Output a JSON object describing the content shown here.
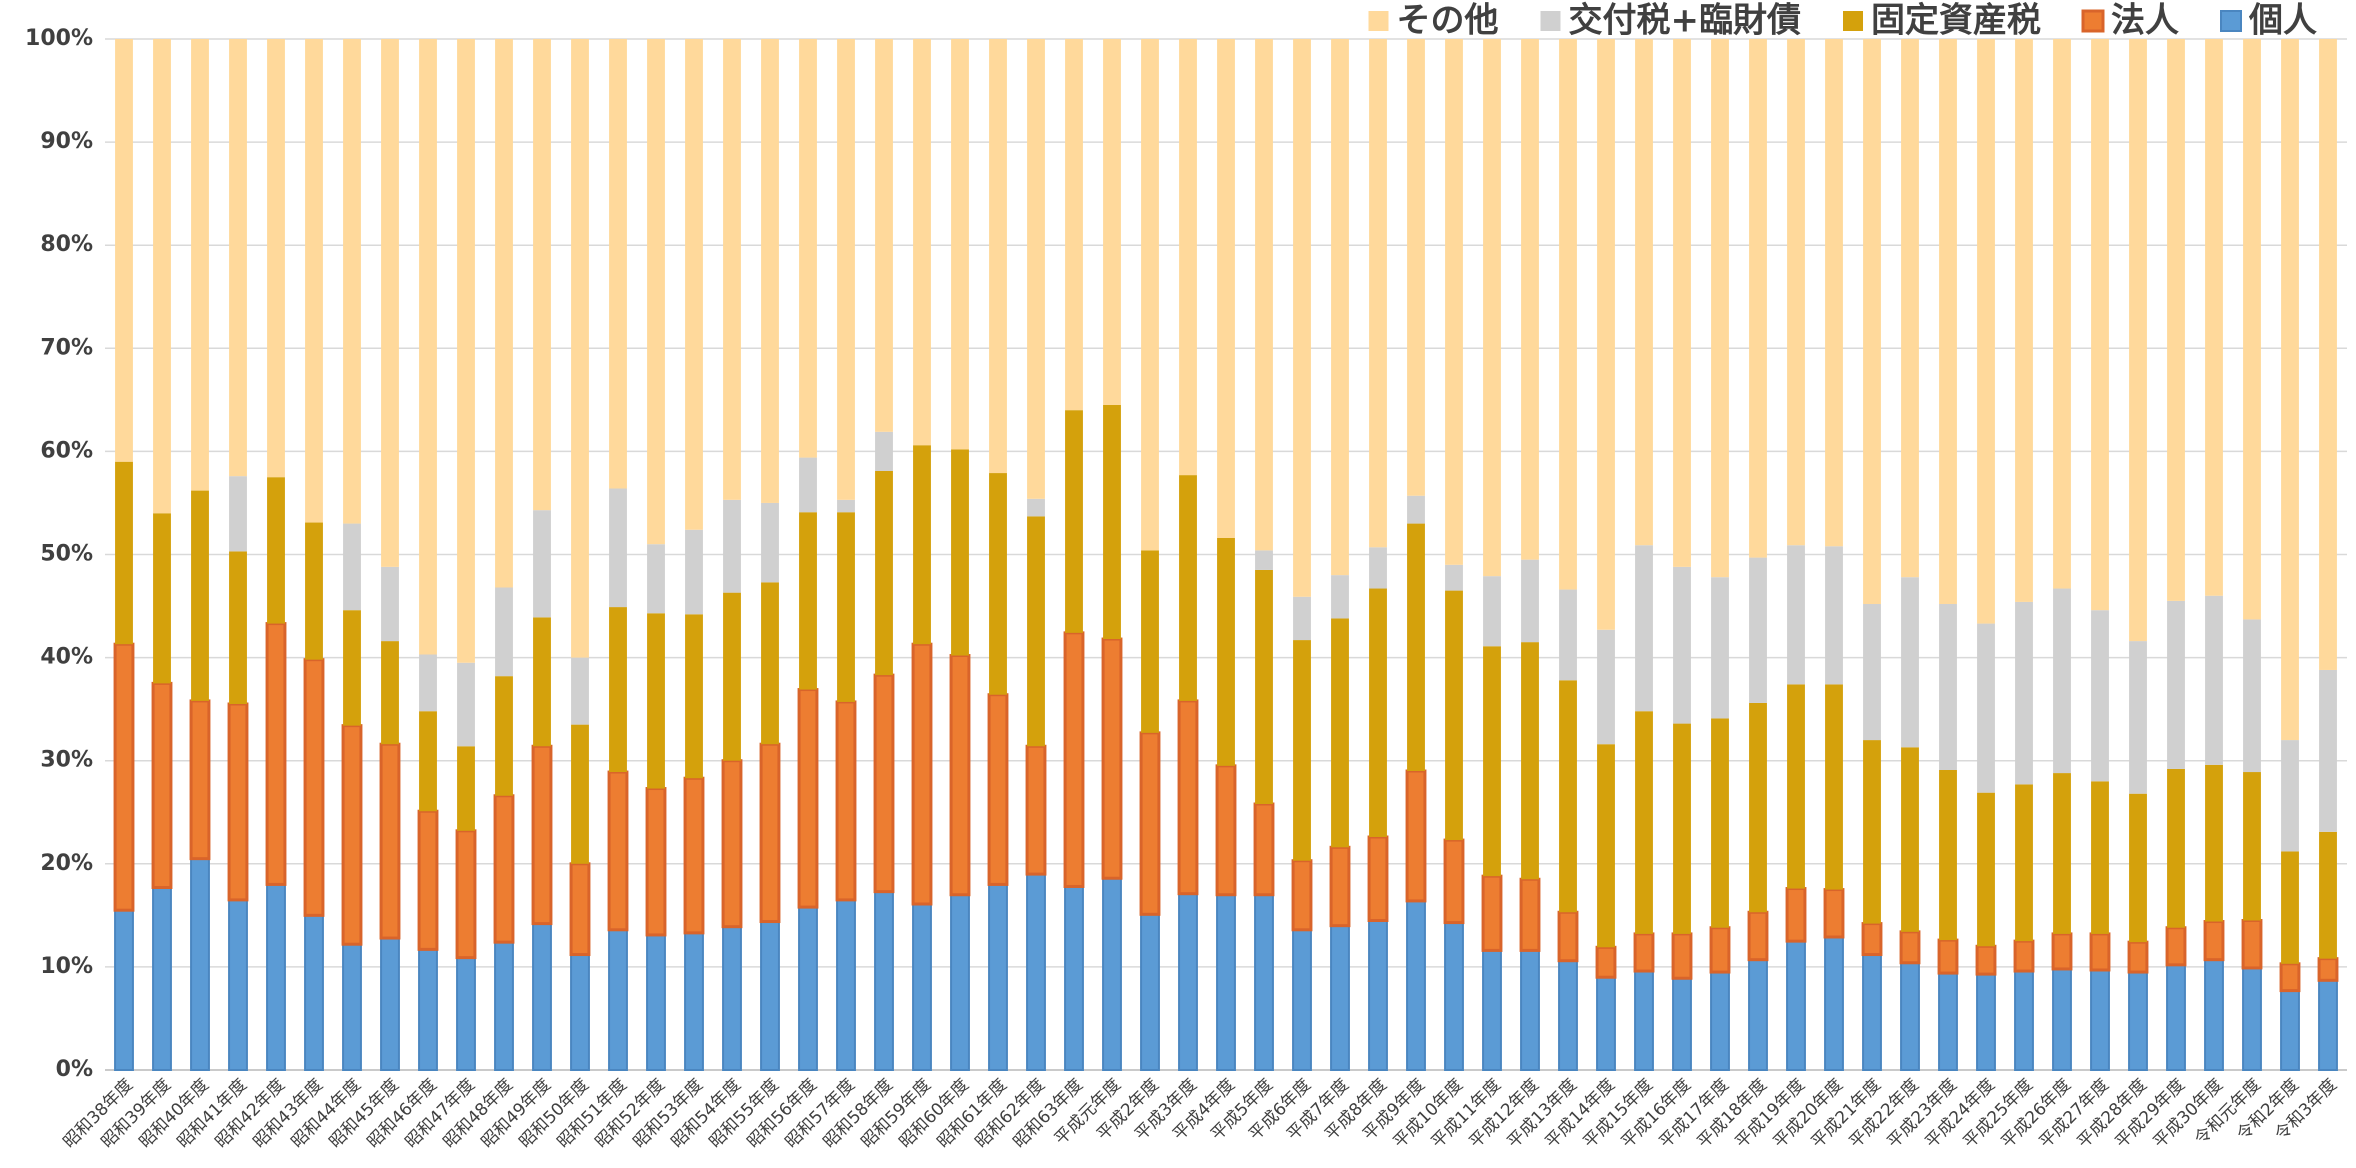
{
  "chart_data": {
    "type": "stacked_bar",
    "categories": [
      "昭和38年度",
      "昭和39年度",
      "昭和40年度",
      "昭和41年度",
      "昭和42年度",
      "昭和43年度",
      "昭和44年度",
      "昭和45年度",
      "昭和46年度",
      "昭和47年度",
      "昭和48年度",
      "昭和49年度",
      "昭和50年度",
      "昭和51年度",
      "昭和52年度",
      "昭和53年度",
      "昭和54年度",
      "昭和55年度",
      "昭和56年度",
      "昭和57年度",
      "昭和58年度",
      "昭和59年度",
      "昭和60年度",
      "昭和61年度",
      "昭和62年度",
      "昭和63年度",
      "平成元年度",
      "平成2年度",
      "平成3年度",
      "平成4年度",
      "平成5年度",
      "平成6年度",
      "平成7年度",
      "平成8年度",
      "平成9年度",
      "平成10年度",
      "平成11年度",
      "平成12年度",
      "平成13年度",
      "平成14年度",
      "平成15年度",
      "平成16年度",
      "平成17年度",
      "平成18年度",
      "平成19年度",
      "平成20年度",
      "平成21年度",
      "平成22年度",
      "平成23年度",
      "平成24年度",
      "平成25年度",
      "平成26年度",
      "平成27年度",
      "平成28年度",
      "平成29年度",
      "平成30年度",
      "令和元年度",
      "令和2年度",
      "令和3年度"
    ],
    "series": [
      {
        "name": "個人",
        "color": "#5b9bd5",
        "values": [
          15.5,
          17.7,
          20.5,
          16.5,
          18.0,
          15.0,
          12.2,
          12.8,
          11.7,
          10.9,
          12.4,
          14.2,
          11.2,
          13.6,
          13.1,
          13.3,
          13.9,
          14.4,
          15.8,
          16.5,
          17.3,
          16.1,
          17.0,
          18.0,
          19.0,
          17.8,
          18.6,
          15.1,
          17.1,
          17.0,
          17.0,
          13.6,
          14.0,
          14.5,
          16.4,
          14.3,
          11.6,
          11.6,
          10.6,
          9.0,
          9.6,
          8.9,
          9.5,
          10.7,
          12.5,
          12.9,
          11.2,
          10.4,
          9.4,
          9.3,
          9.6,
          9.8,
          9.7,
          9.5,
          10.2,
          10.7,
          9.9,
          7.7,
          8.7
        ]
      },
      {
        "name": "法人",
        "color": "#ed7d31",
        "values": [
          25.8,
          19.8,
          15.3,
          19.0,
          25.3,
          24.8,
          21.2,
          18.8,
          13.4,
          12.3,
          14.2,
          17.2,
          8.8,
          15.3,
          14.2,
          15.0,
          16.1,
          17.2,
          21.1,
          19.2,
          21.0,
          25.2,
          23.2,
          18.4,
          12.4,
          24.6,
          23.2,
          17.6,
          18.7,
          12.5,
          8.8,
          6.7,
          7.6,
          8.1,
          12.6,
          8.0,
          7.2,
          6.9,
          4.7,
          2.9,
          3.6,
          4.3,
          4.3,
          4.6,
          5.1,
          4.6,
          3.0,
          3.0,
          3.2,
          2.7,
          2.9,
          3.4,
          3.5,
          2.9,
          3.6,
          3.7,
          4.6,
          2.6,
          2.1
        ]
      },
      {
        "name": "固定資産税",
        "color": "#d4a10c",
        "values": [
          17.7,
          16.5,
          20.4,
          14.8,
          14.2,
          13.3,
          11.2,
          10.0,
          9.7,
          8.2,
          11.6,
          12.5,
          13.5,
          16.0,
          17.0,
          15.9,
          16.3,
          15.7,
          17.2,
          18.4,
          19.8,
          19.3,
          20.0,
          21.5,
          22.3,
          21.6,
          22.7,
          17.7,
          21.9,
          22.1,
          22.7,
          21.4,
          22.2,
          24.1,
          24.0,
          24.2,
          22.3,
          23.0,
          22.5,
          19.7,
          21.6,
          20.4,
          20.3,
          20.3,
          19.8,
          19.9,
          17.8,
          17.9,
          16.5,
          14.9,
          15.2,
          15.6,
          14.8,
          14.4,
          15.4,
          15.2,
          14.4,
          10.9,
          12.3
        ]
      },
      {
        "name": "交付税+臨財債",
        "color": "#d0d0d0",
        "values": [
          0,
          0,
          0,
          7.3,
          0,
          0,
          8.4,
          7.2,
          5.5,
          8.1,
          8.6,
          10.4,
          6.5,
          11.5,
          6.7,
          8.2,
          9.0,
          7.7,
          5.3,
          1.2,
          3.8,
          0,
          0,
          0,
          1.7,
          0,
          0,
          0,
          0,
          0,
          1.9,
          4.2,
          4.2,
          4.0,
          2.7,
          2.5,
          6.8,
          8.0,
          8.8,
          11.1,
          16.1,
          15.2,
          13.7,
          14.1,
          13.5,
          13.4,
          13.2,
          16.5,
          16.1,
          16.4,
          17.7,
          17.9,
          16.6,
          14.8,
          16.3,
          16.4,
          14.8,
          10.8,
          15.7
        ]
      },
      {
        "name": "その他",
        "color": "#ffd99b",
        "values": [
          41.0,
          46.0,
          43.8,
          42.4,
          42.5,
          46.9,
          47.0,
          51.2,
          59.7,
          60.5,
          53.2,
          45.7,
          60.0,
          43.6,
          49.0,
          47.6,
          44.7,
          45.0,
          40.6,
          44.7,
          38.1,
          39.4,
          39.8,
          42.1,
          44.6,
          36.0,
          35.5,
          49.6,
          42.3,
          48.4,
          49.6,
          54.1,
          52.0,
          49.3,
          44.3,
          51.0,
          52.1,
          50.5,
          53.4,
          57.3,
          49.1,
          51.2,
          52.2,
          50.3,
          49.1,
          49.2,
          54.8,
          52.2,
          54.8,
          56.7,
          54.6,
          53.3,
          55.4,
          58.4,
          54.5,
          54.0,
          56.3,
          68.0,
          61.2
        ]
      }
    ],
    "ylim": [
      0,
      100
    ],
    "yticks": [
      {
        "value": 0,
        "label": "0%"
      },
      {
        "value": 10,
        "label": "10%"
      },
      {
        "value": 20,
        "label": "20%"
      },
      {
        "value": 30,
        "label": "30%"
      },
      {
        "value": 40,
        "label": "40%"
      },
      {
        "value": 50,
        "label": "50%"
      },
      {
        "value": 60,
        "label": "60%"
      },
      {
        "value": 70,
        "label": "70%"
      },
      {
        "value": 80,
        "label": "80%"
      },
      {
        "value": 90,
        "label": "90%"
      },
      {
        "value": 100,
        "label": "100%"
      }
    ],
    "grid": true,
    "legend": "top-right"
  }
}
